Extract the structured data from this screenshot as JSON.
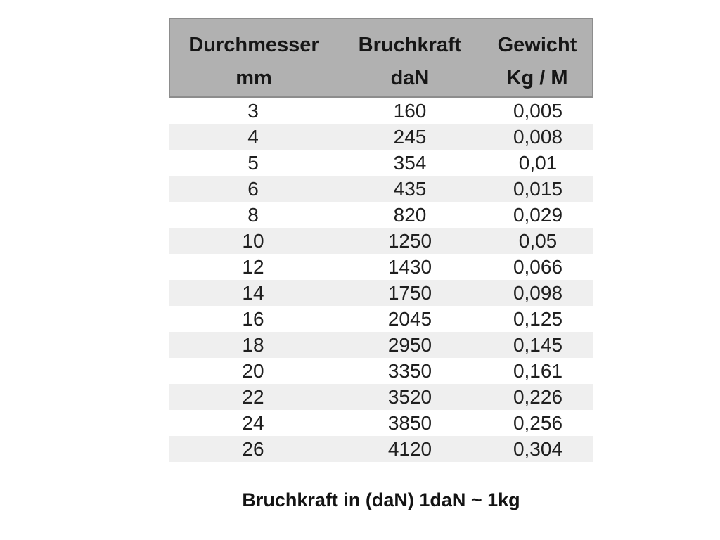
{
  "chart_data": {
    "type": "table",
    "title": "",
    "columns": [
      {
        "label": "Durchmesser",
        "unit": "mm"
      },
      {
        "label": "Bruchkraft",
        "unit": "daN"
      },
      {
        "label": "Gewicht",
        "unit": "Kg / M"
      }
    ],
    "rows": [
      {
        "mm": "3",
        "dan": "160",
        "kg": "0,005"
      },
      {
        "mm": "4",
        "dan": "245",
        "kg": "0,008"
      },
      {
        "mm": "5",
        "dan": "354",
        "kg": "0,01"
      },
      {
        "mm": "6",
        "dan": "435",
        "kg": "0,015"
      },
      {
        "mm": "8",
        "dan": "820",
        "kg": "0,029"
      },
      {
        "mm": "10",
        "dan": "1250",
        "kg": "0,05"
      },
      {
        "mm": "12",
        "dan": "1430",
        "kg": "0,066"
      },
      {
        "mm": "14",
        "dan": "1750",
        "kg": "0,098"
      },
      {
        "mm": "16",
        "dan": "2045",
        "kg": "0,125"
      },
      {
        "mm": "18",
        "dan": "2950",
        "kg": "0,145"
      },
      {
        "mm": "20",
        "dan": "3350",
        "kg": "0,161"
      },
      {
        "mm": "22",
        "dan": "3520",
        "kg": "0,226"
      },
      {
        "mm": "24",
        "dan": "3850",
        "kg": "0,256"
      },
      {
        "mm": "26",
        "dan": "4120",
        "kg": "0,304"
      }
    ],
    "caption": "Bruchkraft in (daN) 1daN ~ 1kg",
    "layout_hints": {
      "zebra_striping": true,
      "header_two_lines": true
    }
  },
  "colors": {
    "page_bg": "#ffffff",
    "header_bg": "#b1b1b1",
    "header_border": "#8d8d8d",
    "stripe_bg": "#efefef",
    "text": "#1f1f1f"
  }
}
